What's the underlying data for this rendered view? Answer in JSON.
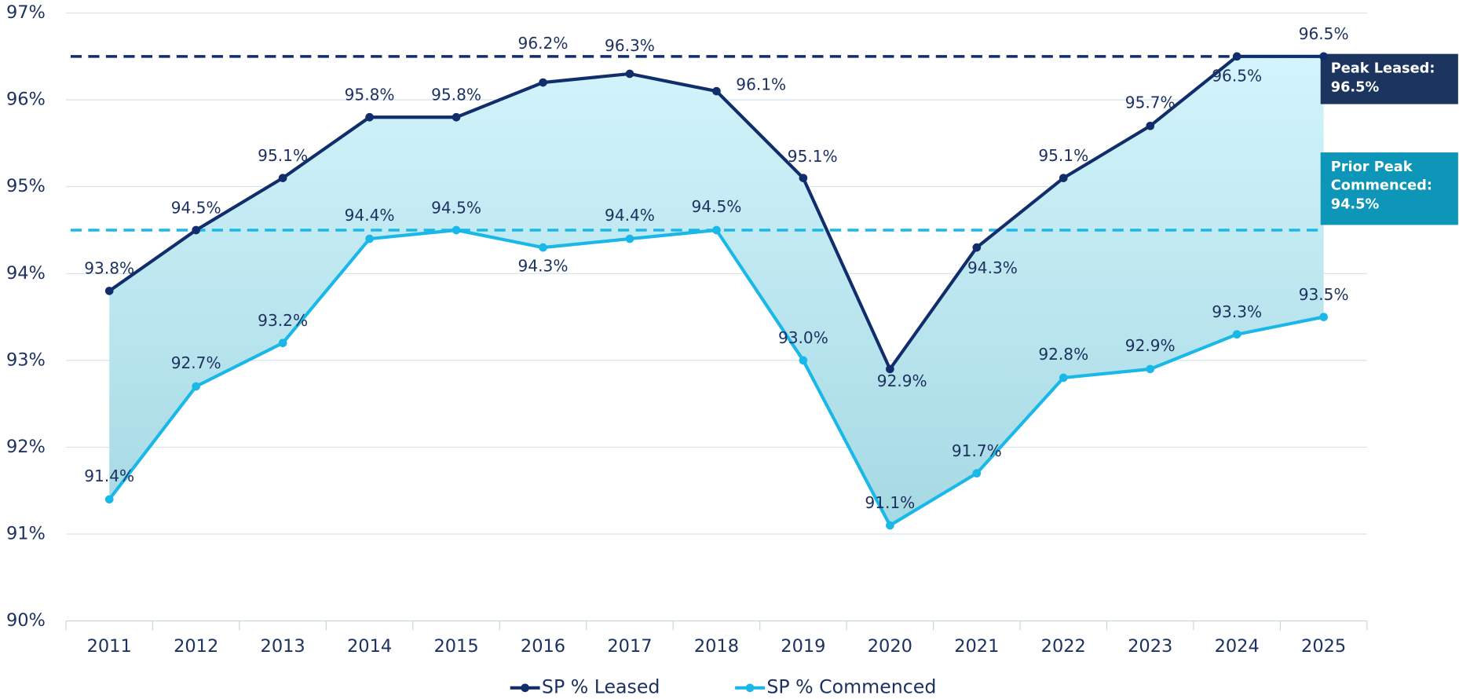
{
  "chart_data": {
    "type": "line",
    "categories": [
      "2011",
      "2012",
      "2013",
      "2014",
      "2015",
      "2016",
      "2017",
      "2018",
      "2019",
      "2020",
      "2021",
      "2022",
      "2023",
      "2024",
      "2025"
    ],
    "series": [
      {
        "name": "SP % Leased",
        "color": "#112d6b",
        "values": [
          93.8,
          94.5,
          95.1,
          95.8,
          95.8,
          96.2,
          96.3,
          96.1,
          95.1,
          92.9,
          94.3,
          95.1,
          95.7,
          96.5,
          96.5
        ],
        "value_labels": [
          "93.8%",
          "94.5%",
          "95.1%",
          "95.8%",
          "95.8%",
          "96.2%",
          "96.3%",
          "96.1%",
          "95.1%",
          "92.9%",
          "94.3%",
          "95.1%",
          "95.7%",
          "96.5%",
          "96.5%"
        ]
      },
      {
        "name": "SP % Commenced",
        "color": "#1ab8e8",
        "values": [
          91.4,
          92.7,
          93.2,
          94.4,
          94.5,
          94.3,
          94.4,
          94.5,
          93.0,
          91.1,
          91.7,
          92.8,
          92.9,
          93.3,
          93.5
        ],
        "value_labels": [
          "91.4%",
          "92.7%",
          "93.2%",
          "94.4%",
          "94.5%",
          "94.3%",
          "94.4%",
          "94.5%",
          "93.0%",
          "91.1%",
          "91.7%",
          "92.8%",
          "92.9%",
          "93.3%",
          "93.5%"
        ]
      }
    ],
    "ylim": [
      90,
      97
    ],
    "yticks": [
      {
        "value": 90,
        "label": "90%"
      },
      {
        "value": 91,
        "label": "91%"
      },
      {
        "value": 92,
        "label": "92%"
      },
      {
        "value": 93,
        "label": "93%"
      },
      {
        "value": 94,
        "label": "94%"
      },
      {
        "value": 95,
        "label": "95%"
      },
      {
        "value": 96,
        "label": "96%"
      },
      {
        "value": 97,
        "label": "97%"
      }
    ],
    "grid": true,
    "legend": "bottom",
    "reference_lines": [
      {
        "value": 96.5,
        "color": "#112d6b",
        "label": [
          "Peak Leased:",
          "96.5%"
        ],
        "box_color": "#1b355f"
      },
      {
        "value": 94.5,
        "color": "#1ab8e8",
        "label": [
          "Prior Peak",
          "Commenced:",
          "94.5%"
        ],
        "box_color": "#0d96b8"
      }
    ]
  }
}
